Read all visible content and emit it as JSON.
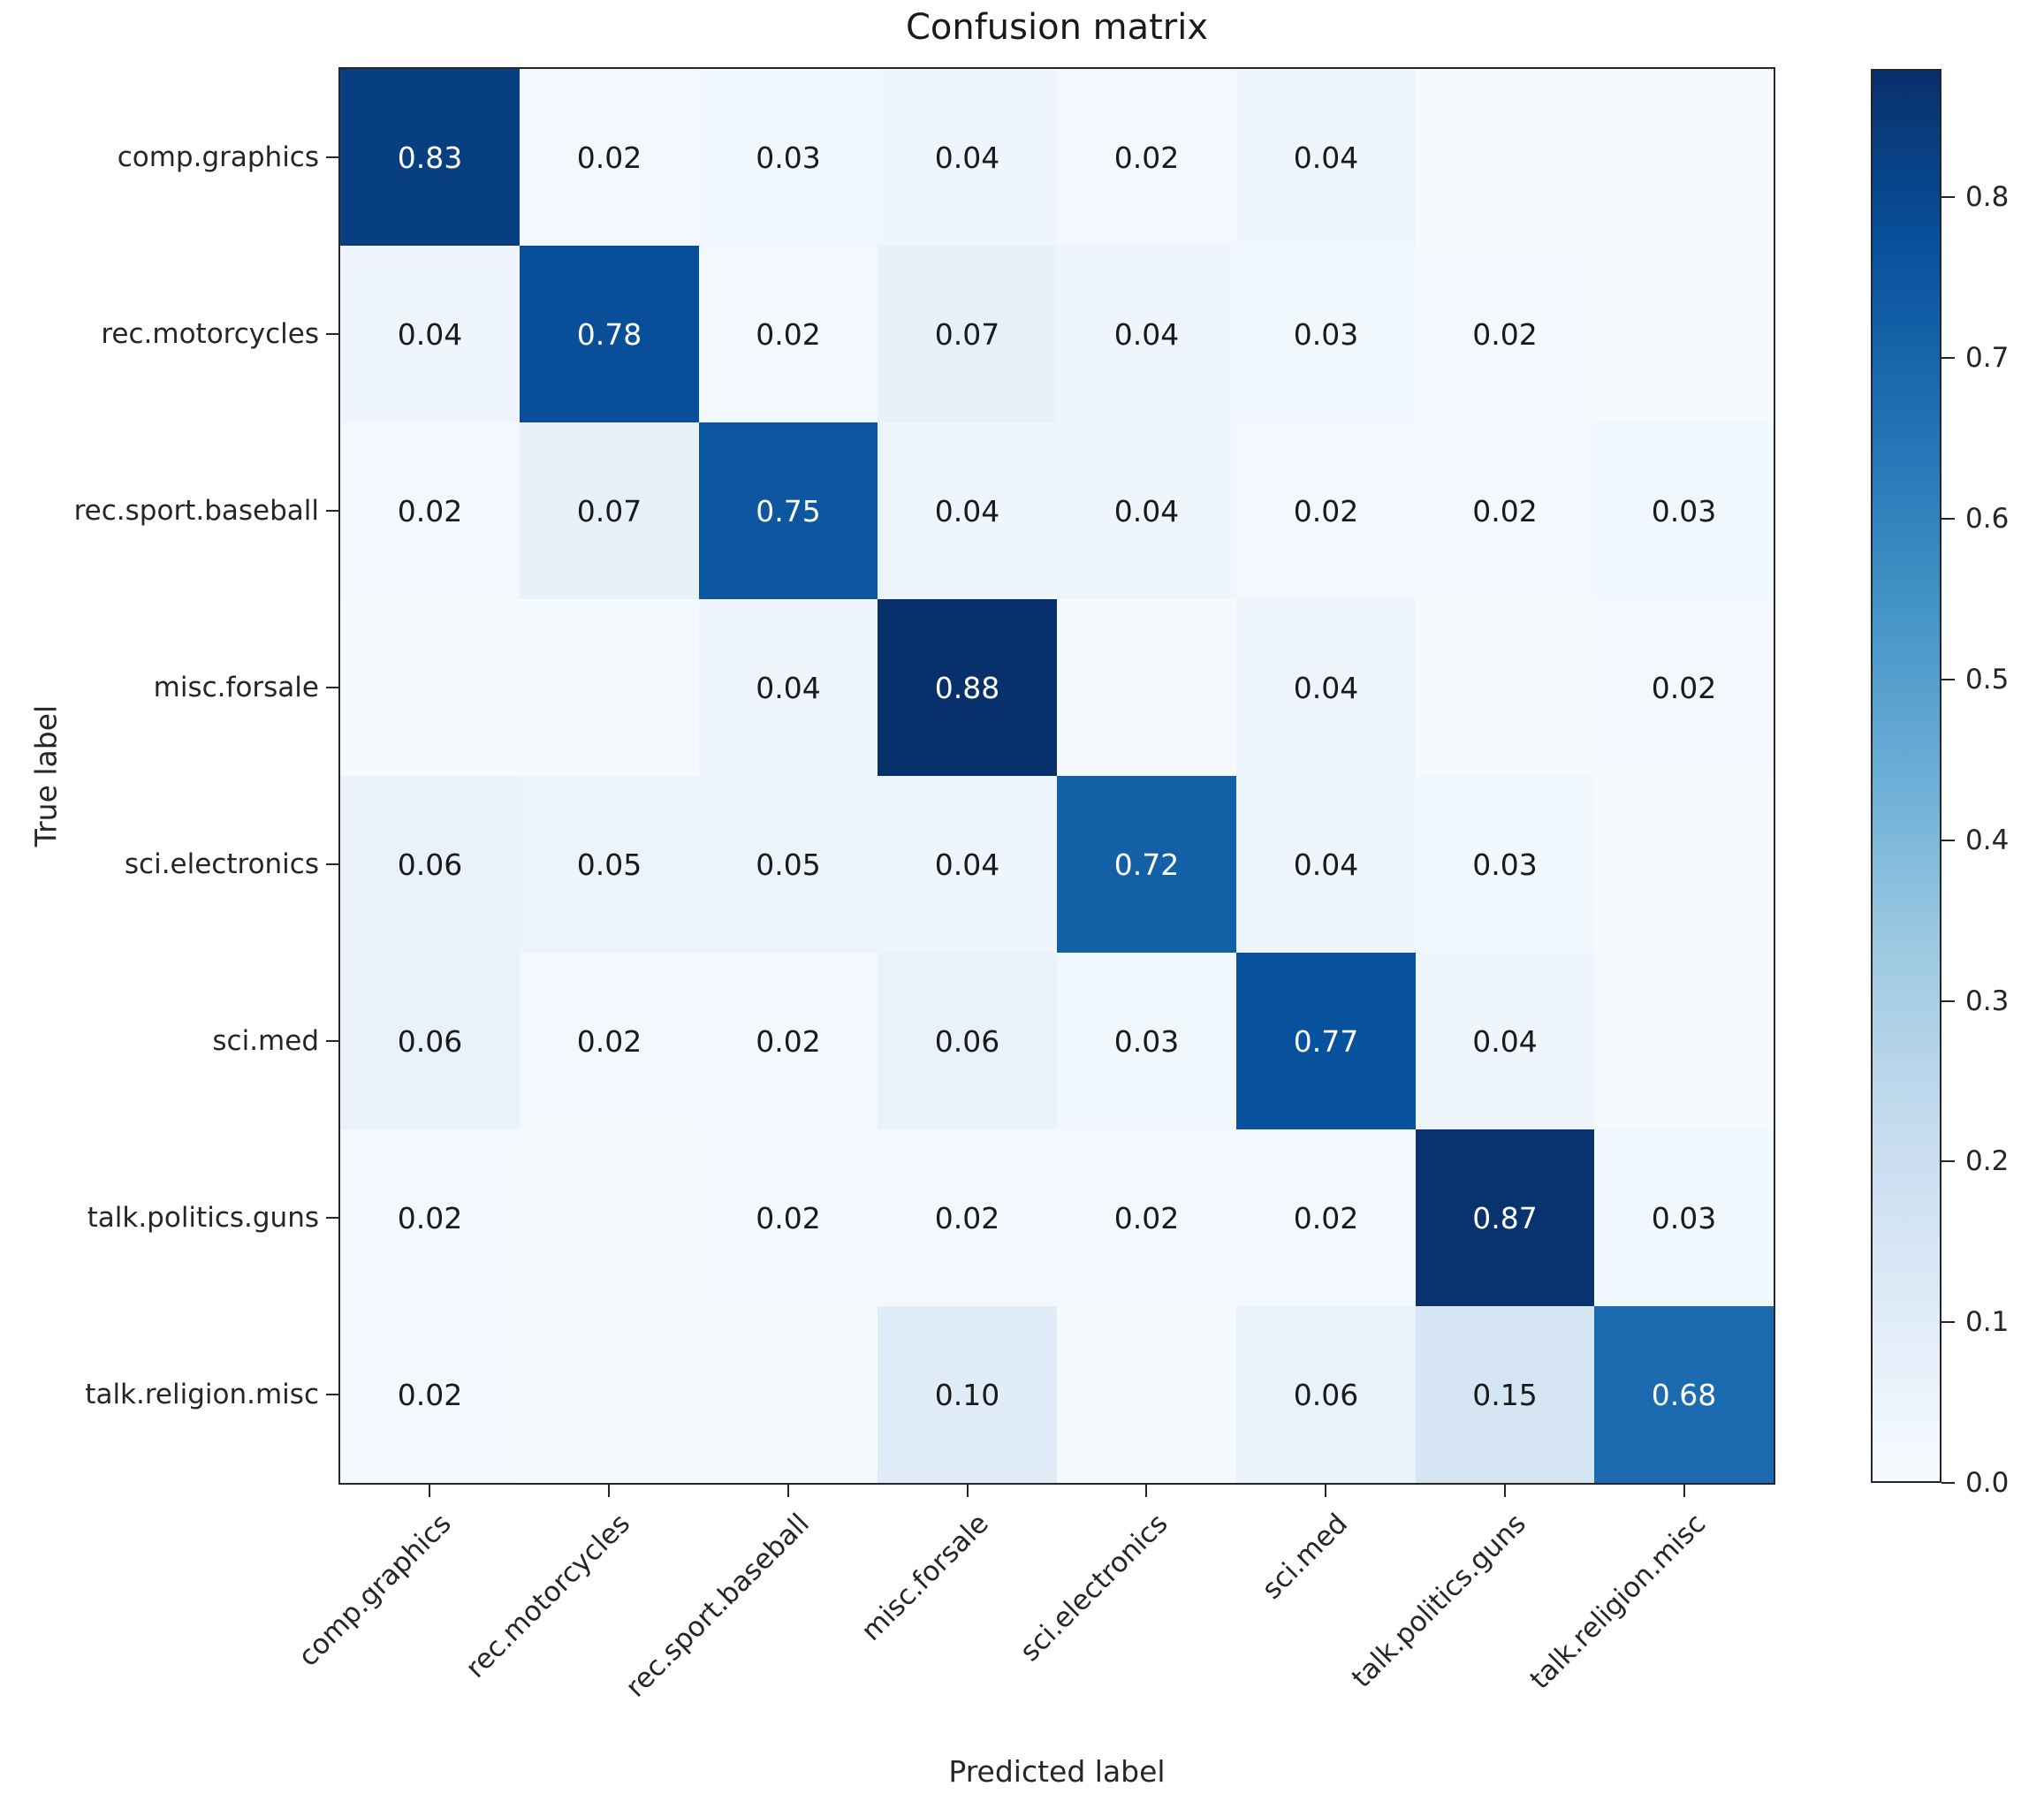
{
  "chart_data": {
    "type": "heatmap",
    "title": "Confusion matrix",
    "xlabel": "Predicted label",
    "ylabel": "True label",
    "categories": [
      "comp.graphics",
      "rec.motorcycles",
      "rec.sport.baseball",
      "misc.forsale",
      "sci.electronics",
      "sci.med",
      "talk.politics.guns",
      "talk.religion.misc"
    ],
    "matrix": [
      [
        0.83,
        0.02,
        0.03,
        0.04,
        0.02,
        0.04,
        null,
        null
      ],
      [
        0.04,
        0.78,
        0.02,
        0.07,
        0.04,
        0.03,
        0.02,
        null
      ],
      [
        0.02,
        0.07,
        0.75,
        0.04,
        0.04,
        0.02,
        0.02,
        0.03
      ],
      [
        null,
        null,
        0.04,
        0.88,
        null,
        0.04,
        null,
        0.02
      ],
      [
        0.06,
        0.05,
        0.05,
        0.04,
        0.72,
        0.04,
        0.03,
        null
      ],
      [
        0.06,
        0.02,
        0.02,
        0.06,
        0.03,
        0.77,
        0.04,
        null
      ],
      [
        0.02,
        null,
        0.02,
        0.02,
        0.02,
        0.02,
        0.87,
        0.03
      ],
      [
        0.02,
        null,
        null,
        0.1,
        null,
        0.06,
        0.15,
        0.68
      ]
    ],
    "value_decimals": 2,
    "vmin": 0,
    "vmax": 0.88,
    "colorbar_ticks": [
      "0.0",
      "0.1",
      "0.2",
      "0.3",
      "0.4",
      "0.5",
      "0.6",
      "0.7",
      "0.8"
    ],
    "colormap": {
      "name": "Blues",
      "stops": [
        [
          0.0,
          [
            247,
            251,
            255
          ]
        ],
        [
          0.125,
          [
            222,
            235,
            247
          ]
        ],
        [
          0.25,
          [
            198,
            219,
            239
          ]
        ],
        [
          0.375,
          [
            158,
            202,
            225
          ]
        ],
        [
          0.5,
          [
            107,
            174,
            214
          ]
        ],
        [
          0.625,
          [
            66,
            146,
            198
          ]
        ],
        [
          0.75,
          [
            33,
            113,
            181
          ]
        ],
        [
          0.875,
          [
            8,
            81,
            156
          ]
        ],
        [
          1.0,
          [
            8,
            48,
            107
          ]
        ]
      ]
    },
    "legend_position": "right-colorbar",
    "grid": false,
    "cell_text_color_dark": "#1a1a1a",
    "cell_text_color_light": "#ffffff"
  }
}
